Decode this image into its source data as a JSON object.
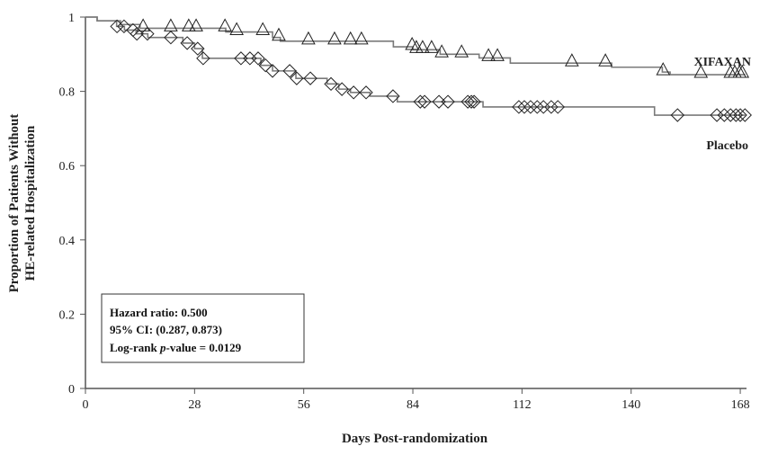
{
  "chart_data": {
    "type": "line",
    "subtype": "kaplan-meier",
    "title": "",
    "xlabel": "Days Post-randomization",
    "ylabel_lines": [
      "Proportion of Patients Without",
      "HE-related Hospitalization"
    ],
    "xlim": [
      0,
      169.6
    ],
    "ylim": [
      0,
      1
    ],
    "xticks": [
      "0",
      "28",
      "56",
      "84",
      "112",
      "140",
      "168"
    ],
    "yticks": [
      "0",
      "0.2",
      "0.4",
      "0.6",
      "0.8",
      "1"
    ],
    "grid": false,
    "series": [
      {
        "name": "XIFAXAN",
        "marker": "triangle",
        "steps": [
          [
            0,
            1.0
          ],
          [
            3,
            0.99
          ],
          [
            9,
            0.98
          ],
          [
            14,
            0.97
          ],
          [
            36,
            0.96
          ],
          [
            48,
            0.945
          ],
          [
            50,
            0.935
          ],
          [
            79,
            0.92
          ],
          [
            84,
            0.912
          ],
          [
            91,
            0.9
          ],
          [
            101,
            0.89
          ],
          [
            109,
            0.876
          ],
          [
            135,
            0.865
          ],
          [
            148,
            0.852
          ],
          [
            150,
            0.845
          ]
        ],
        "censored_days": [
          14.8,
          21.9,
          26.5,
          28.4,
          35.8,
          38.8,
          45.5,
          49.6,
          57.2,
          63.9,
          68,
          70.8,
          83.8,
          84.9,
          86.5,
          88.8,
          91.4,
          96.5,
          103.4,
          105.7,
          124.8,
          133.4,
          148.2,
          157.9,
          165.5,
          166.6,
          167.8,
          168.5
        ]
      },
      {
        "name": "Placebo",
        "marker": "diamond",
        "steps": [
          [
            0,
            1.0
          ],
          [
            3,
            0.99
          ],
          [
            8,
            0.975
          ],
          [
            10,
            0.965
          ],
          [
            13,
            0.955
          ],
          [
            16,
            0.945
          ],
          [
            25,
            0.93
          ],
          [
            28,
            0.915
          ],
          [
            30,
            0.889
          ],
          [
            45,
            0.87
          ],
          [
            48,
            0.855
          ],
          [
            54,
            0.835
          ],
          [
            62,
            0.82
          ],
          [
            65,
            0.806
          ],
          [
            68,
            0.797
          ],
          [
            73,
            0.787
          ],
          [
            80,
            0.772
          ],
          [
            102,
            0.758
          ],
          [
            146,
            0.736
          ]
        ],
        "censored_days": [
          8.1,
          9.9,
          12.2,
          13.2,
          15.9,
          21.9,
          26.1,
          28.8,
          30.2,
          39.9,
          42.2,
          44.3,
          46.2,
          48,
          52.4,
          54.2,
          57.7,
          63,
          65.8,
          68.8,
          72,
          78.9,
          85.9,
          87,
          90.7,
          93,
          98.1,
          99,
          99.7,
          111.2,
          112.6,
          114.2,
          115.9,
          117.5,
          119.5,
          121.2,
          151.9,
          162,
          163.9,
          165.5,
          166.9,
          168,
          169.2
        ]
      }
    ],
    "annotation": {
      "hazard_ratio": "Hazard ratio: 0.500",
      "ci": "95% CI: (0.287, 0.873)",
      "logrank_prefix": "Log-rank ",
      "logrank_p": "p",
      "logrank_suffix": "-value = 0.0129"
    },
    "line_color": "#7a7a7a",
    "marker_color": "#222222"
  }
}
